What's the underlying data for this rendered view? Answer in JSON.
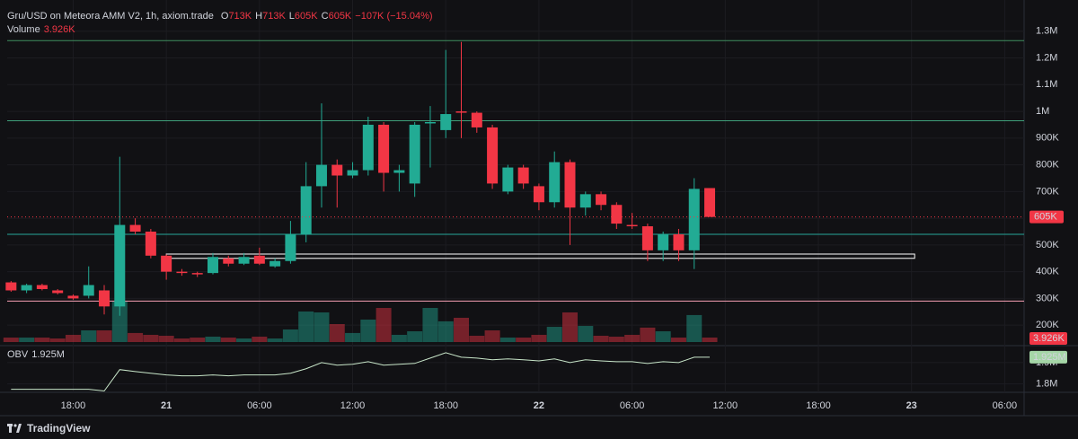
{
  "chart_data": {
    "type": "candlestick",
    "title": "Gru/USD on Meteora AMM V2, 1h, axiom.trade",
    "legend": [
      {
        "key": "O",
        "value": "713K"
      },
      {
        "key": "H",
        "value": "713K"
      },
      {
        "key": "L",
        "value": "605K"
      },
      {
        "key": "C",
        "value": "605K"
      }
    ],
    "change": "−107K (−15.04%)",
    "x": [
      0,
      1,
      2,
      3,
      4,
      5,
      6,
      7,
      8,
      9,
      10,
      11,
      12,
      13,
      14,
      15,
      16,
      17,
      18,
      19,
      20,
      21,
      22,
      23,
      24,
      25,
      26,
      27,
      28,
      29,
      30,
      31,
      32,
      33,
      34,
      35,
      36,
      37,
      38,
      39,
      40,
      41,
      42,
      43,
      44,
      45
    ],
    "open": [
      360000,
      330000,
      350000,
      330000,
      310000,
      310000,
      330000,
      270000,
      575000,
      550000,
      460000,
      400000,
      395000,
      395000,
      450000,
      430000,
      460000,
      420000,
      440000,
      540000,
      720000,
      800000,
      760000,
      780000,
      950000,
      770000,
      730000,
      955000,
      930000,
      1000000,
      995000,
      940000,
      700000,
      790000,
      720000,
      660000,
      810000,
      640000,
      690000,
      650000,
      575000,
      570000,
      480000,
      540000,
      480000,
      713000
    ],
    "high": [
      365000,
      355000,
      355000,
      335000,
      315000,
      420000,
      350000,
      830000,
      600000,
      560000,
      465000,
      410000,
      400000,
      470000,
      460000,
      470000,
      490000,
      450000,
      590000,
      810000,
      1030000,
      820000,
      810000,
      980000,
      960000,
      800000,
      960000,
      1020000,
      1230000,
      1260000,
      1000000,
      950000,
      800000,
      800000,
      730000,
      850000,
      820000,
      700000,
      700000,
      660000,
      620000,
      580000,
      550000,
      560000,
      750000,
      713000
    ],
    "low": [
      325000,
      320000,
      330000,
      315000,
      295000,
      300000,
      240000,
      235000,
      540000,
      450000,
      370000,
      385000,
      380000,
      390000,
      420000,
      425000,
      425000,
      415000,
      430000,
      510000,
      640000,
      640000,
      750000,
      760000,
      700000,
      700000,
      680000,
      790000,
      900000,
      900000,
      920000,
      710000,
      690000,
      710000,
      630000,
      640000,
      500000,
      610000,
      630000,
      560000,
      560000,
      440000,
      440000,
      440000,
      410000,
      605000
    ],
    "close": [
      330000,
      350000,
      335000,
      320000,
      300000,
      350000,
      270000,
      575000,
      550000,
      460000,
      400000,
      395000,
      390000,
      455000,
      430000,
      455000,
      430000,
      440000,
      540000,
      720000,
      800000,
      760000,
      780000,
      950000,
      770000,
      780000,
      950000,
      960000,
      990000,
      995000,
      940000,
      730000,
      790000,
      730000,
      660000,
      810000,
      640000,
      690000,
      650000,
      580000,
      570000,
      480000,
      540000,
      480000,
      710000,
      605000
    ],
    "up_color": "#22ab94",
    "down_color": "#f23645",
    "xlim": [
      -0.25,
      65.25
    ],
    "xticks": [
      {
        "value": 4,
        "label": "18:00"
      },
      {
        "value": 10,
        "label": "21"
      },
      {
        "value": 16,
        "label": "06:00"
      },
      {
        "value": 22,
        "label": "12:00"
      },
      {
        "value": 28,
        "label": "18:00"
      },
      {
        "value": 34,
        "label": "22"
      },
      {
        "value": 40,
        "label": "06:00"
      },
      {
        "value": 46,
        "label": "12:00"
      },
      {
        "value": 52,
        "label": "18:00"
      },
      {
        "value": 58,
        "label": "23"
      },
      {
        "value": 64,
        "label": "06:00"
      }
    ],
    "ylim": [
      130000,
      1390000
    ],
    "yticks": [
      {
        "value": 200000,
        "label": "200K"
      },
      {
        "value": 300000,
        "label": "300K"
      },
      {
        "value": 400000,
        "label": "400K"
      },
      {
        "value": 500000,
        "label": "500K"
      },
      {
        "value": 600000,
        "label": "600K"
      },
      {
        "value": 700000,
        "label": "700K"
      },
      {
        "value": 800000,
        "label": "800K"
      },
      {
        "value": 900000,
        "label": "900K"
      },
      {
        "value": 1000000,
        "label": "1M"
      },
      {
        "value": 1100000,
        "label": "1.1M"
      },
      {
        "value": 1200000,
        "label": "1.2M"
      },
      {
        "value": 1300000,
        "label": "1.3M"
      }
    ],
    "grid": true,
    "price_label": "605K",
    "levels": [
      {
        "value": 1265000,
        "color": "#3f8f5f"
      },
      {
        "value": 965000,
        "color": "#3fa07a"
      },
      {
        "value": 540000,
        "color": "#26a69a"
      },
      {
        "value": 290000,
        "color": "#f7a1b5"
      }
    ],
    "zone": {
      "low": 450000,
      "high": 466000,
      "from": 10,
      "to": 58.2,
      "color": "#ffffff"
    },
    "volume": {
      "name": "Volume",
      "label": "3.926K",
      "values": [
        3900,
        3900,
        3900,
        3100,
        6300,
        10200,
        10200,
        35300,
        7900,
        6300,
        5500,
        3100,
        3900,
        4700,
        3900,
        3100,
        4700,
        3100,
        11000,
        26700,
        25900,
        15700,
        7900,
        19600,
        29800,
        6300,
        9400,
        29800,
        18100,
        21200,
        5500,
        10200,
        3900,
        3900,
        6300,
        13300,
        25900,
        14100,
        5500,
        4700,
        6300,
        12600,
        9400,
        3900,
        23600,
        3926
      ]
    },
    "obv": {
      "name": "OBV",
      "label": "1.925M",
      "color": "#c8e6c9",
      "values": [
        1775000,
        1775000,
        1775000,
        1775000,
        1775000,
        1775000,
        1767000,
        1867000,
        1858000,
        1850000,
        1842000,
        1838000,
        1838000,
        1842000,
        1838000,
        1842000,
        1842000,
        1842000,
        1850000,
        1871000,
        1900000,
        1888000,
        1892000,
        1904000,
        1888000,
        1892000,
        1896000,
        1921000,
        1946000,
        1925000,
        1921000,
        1913000,
        1917000,
        1913000,
        1908000,
        1917000,
        1900000,
        1913000,
        1908000,
        1904000,
        1904000,
        1896000,
        1904000,
        1900000,
        1925000,
        1925000
      ],
      "ylim": [
        1765000,
        1975000
      ],
      "yticks": [
        {
          "value": 1800000,
          "label": "1.8M"
        },
        {
          "value": 1900000,
          "label": "1.9M"
        }
      ]
    },
    "footer": "TradingView"
  }
}
